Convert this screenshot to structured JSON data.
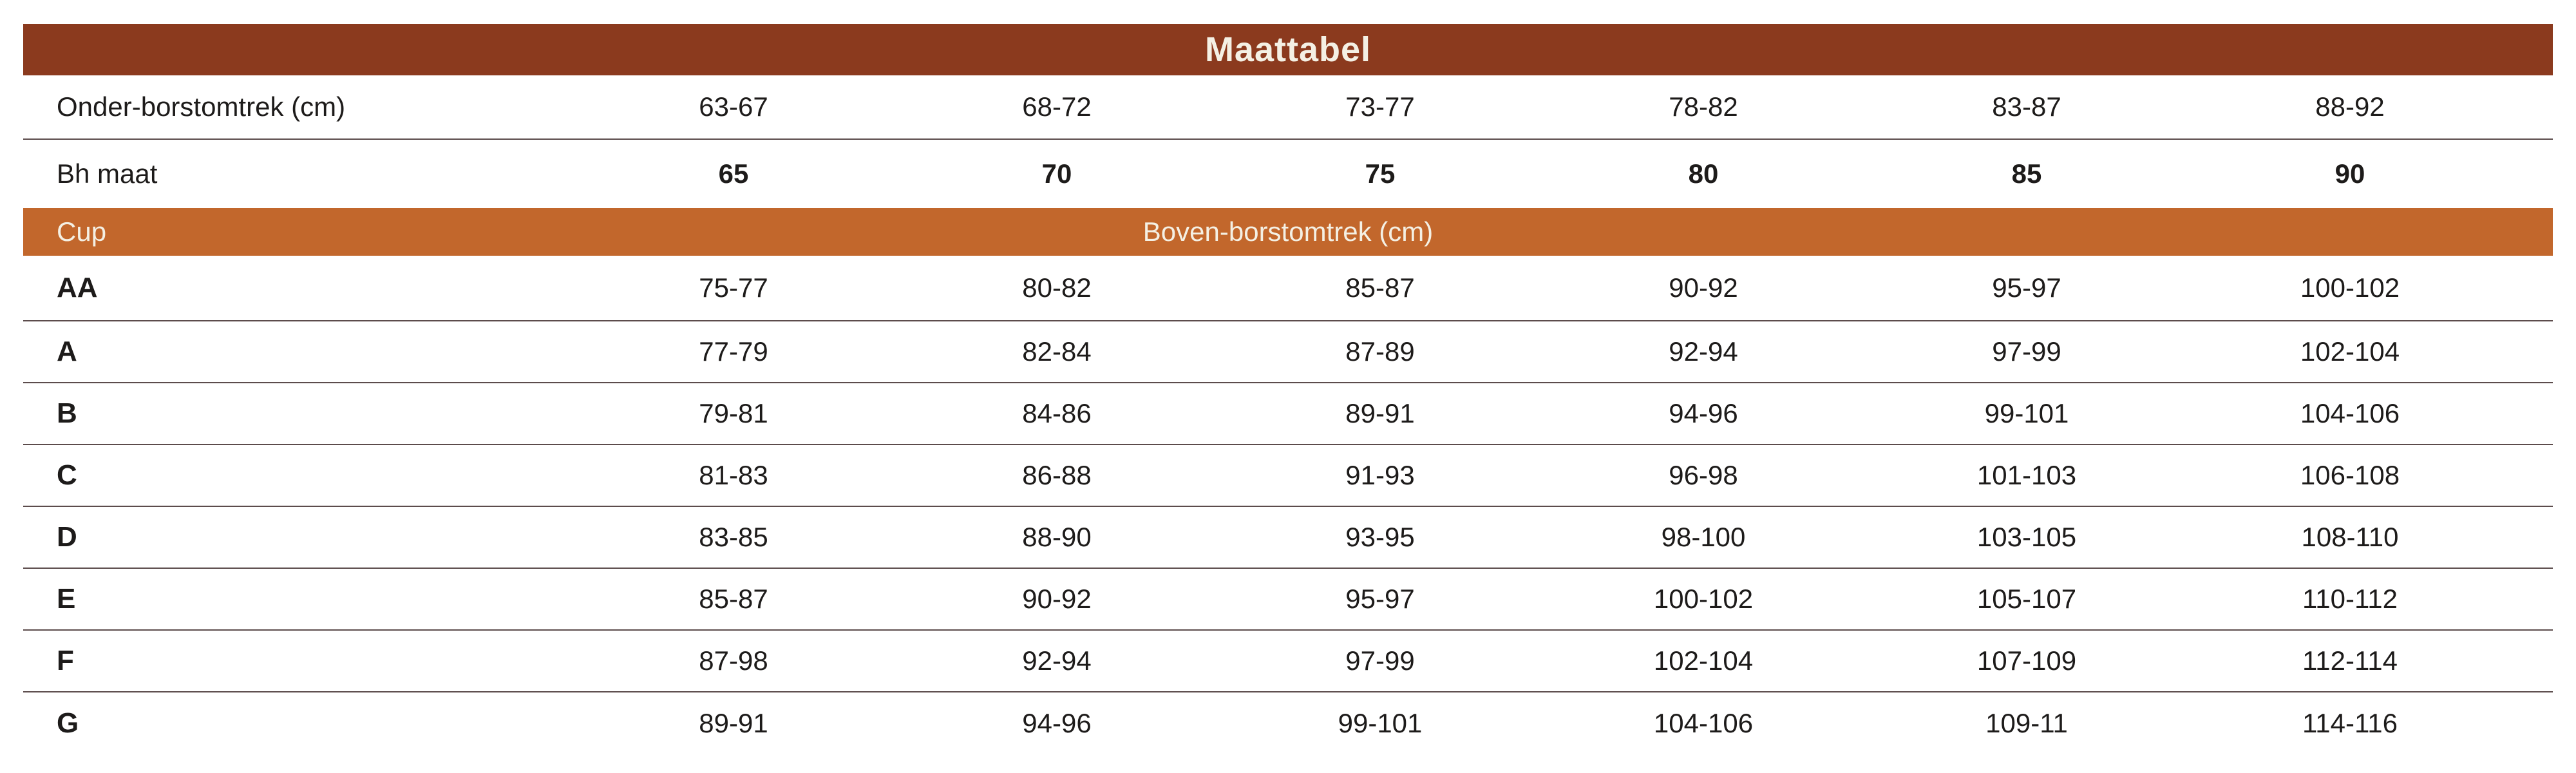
{
  "colors": {
    "title_bg": "#8b3a1e",
    "cup_bg": "#c2672c",
    "header_text": "#f4f0e4",
    "body_text": "#1d1b1a",
    "divider": "#5c4c4c",
    "page_bg": "#ffffff"
  },
  "table": {
    "title": "Maattabel",
    "measure_rows": [
      {
        "label": "Onder-borstomtrek (cm)",
        "values": [
          "63-67",
          "68-72",
          "73-77",
          "78-82",
          "83-87",
          "88-92"
        ]
      },
      {
        "label": "Bh maat",
        "values": [
          "65",
          "70",
          "75",
          "80",
          "85",
          "90"
        ]
      }
    ],
    "cup_header": {
      "label": "Cup",
      "span_label": "Boven-borstomtrek (cm)"
    },
    "cup_rows": [
      {
        "cup": "AA",
        "values": [
          "75-77",
          "80-82",
          "85-87",
          "90-92",
          "95-97",
          "100-102"
        ]
      },
      {
        "cup": "A",
        "values": [
          "77-79",
          "82-84",
          "87-89",
          "92-94",
          "97-99",
          "102-104"
        ]
      },
      {
        "cup": "B",
        "values": [
          "79-81",
          "84-86",
          "89-91",
          "94-96",
          "99-101",
          "104-106"
        ]
      },
      {
        "cup": "C",
        "values": [
          "81-83",
          "86-88",
          "91-93",
          "96-98",
          "101-103",
          "106-108"
        ]
      },
      {
        "cup": "D",
        "values": [
          "83-85",
          "88-90",
          "93-95",
          "98-100",
          "103-105",
          "108-110"
        ]
      },
      {
        "cup": "E",
        "values": [
          "85-87",
          "90-92",
          "95-97",
          "100-102",
          "105-107",
          "110-112"
        ]
      },
      {
        "cup": "F",
        "values": [
          "87-98",
          "92-94",
          "97-99",
          "102-104",
          "107-109",
          "112-114"
        ]
      },
      {
        "cup": "G",
        "values": [
          "89-91",
          "94-96",
          "99-101",
          "104-106",
          "109-11",
          "114-116"
        ]
      }
    ]
  }
}
